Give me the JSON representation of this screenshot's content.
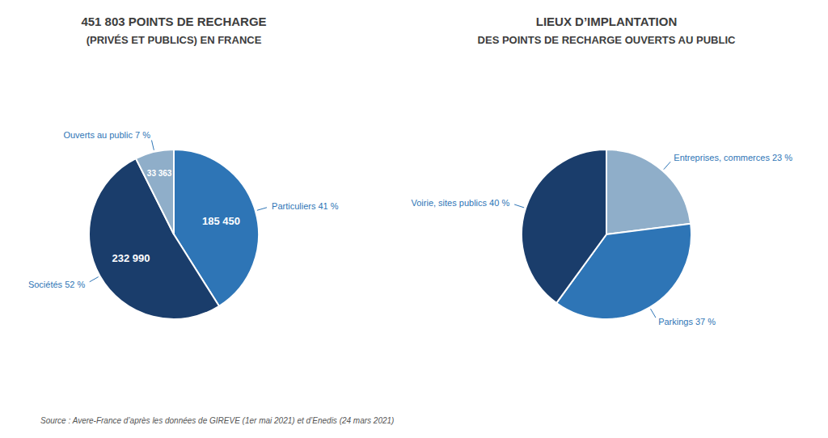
{
  "chart_data": [
    {
      "type": "pie",
      "title": "451 803 POINTS DE RECHARGE",
      "subtitle": "(PRIVÉS ET PUBLICS) EN FRANCE",
      "values": [
        185450,
        232990,
        33363
      ],
      "value_labels": [
        "185 450",
        "232 990",
        "33 363"
      ],
      "annotations": [
        "Particuliers 41 %",
        "Sociétés 52 %",
        "Ouverts au public 7 %"
      ],
      "colors": [
        "#2e75b6",
        "#1a3d6b",
        "#8faec9"
      ],
      "source": "Source : Avere-France d’après les données de GIREVE (1er mai 2021) et d’Enedis (24 mars 2021)"
    },
    {
      "type": "pie",
      "title": "LIEUX D’IMPLANTATION",
      "subtitle": "DES POINTS DE RECHARGE OUVERTS AU PUBLIC",
      "values": [
        23,
        37,
        40
      ],
      "annotations": [
        "Entreprises, commerces 23 %",
        "Parkings 37 %",
        "Voirie, sites publics 40 %"
      ],
      "colors": [
        "#8faec9",
        "#2e75b6",
        "#1a3d6b"
      ]
    }
  ]
}
